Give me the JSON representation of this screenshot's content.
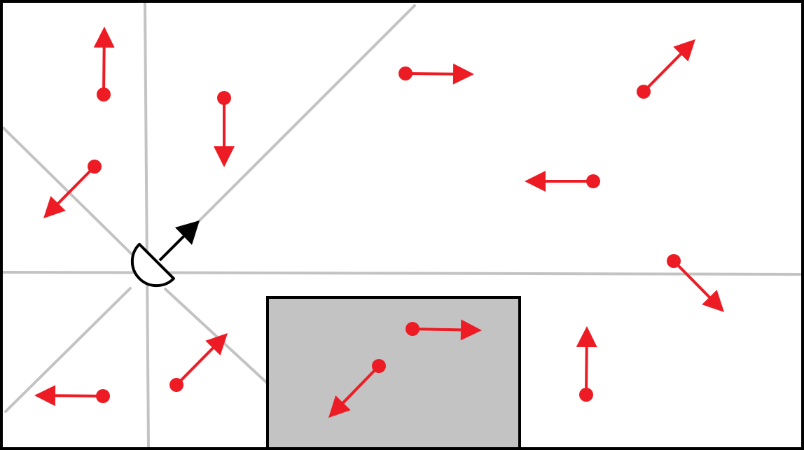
{
  "diagram": {
    "colors": {
      "background": "#ffffff",
      "border": "#000000",
      "grid_lines": "#c3c3c3",
      "obstacle_fill": "#c3c3c3",
      "obstacle_stroke": "#000000",
      "particle": "#ed1c24",
      "observer": "#000000"
    },
    "observer": {
      "shape": "half-circle-icon",
      "facing": "north-east",
      "arrow": "black-arrow"
    },
    "particles": [
      {
        "id": 1,
        "direction": "up"
      },
      {
        "id": 2,
        "direction": "down"
      },
      {
        "id": 3,
        "direction": "right"
      },
      {
        "id": 4,
        "direction": "up-right"
      },
      {
        "id": 5,
        "direction": "down-left"
      },
      {
        "id": 6,
        "direction": "left"
      },
      {
        "id": 7,
        "direction": "down-right"
      },
      {
        "id": 8,
        "direction": "right"
      },
      {
        "id": 9,
        "direction": "down-left"
      },
      {
        "id": 10,
        "direction": "up"
      },
      {
        "id": 11,
        "direction": "up-right"
      },
      {
        "id": 12,
        "direction": "left"
      }
    ]
  }
}
